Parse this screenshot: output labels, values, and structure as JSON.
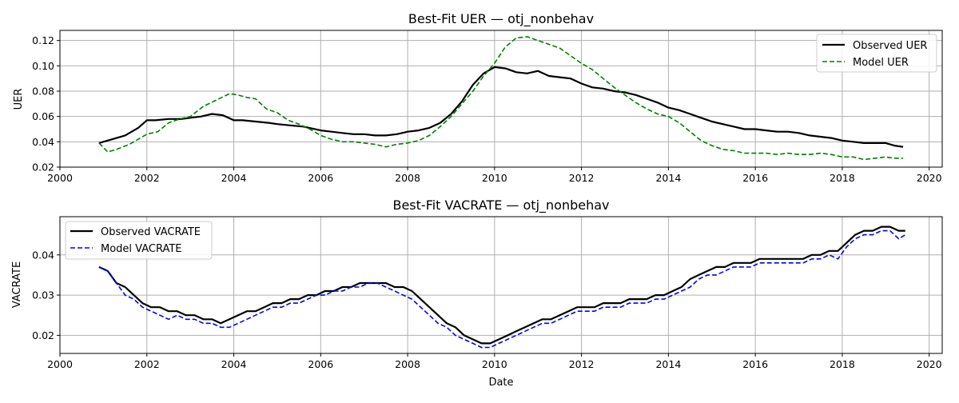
{
  "chart_data": [
    {
      "type": "line",
      "title": "Best-Fit UER — otj_nonbehav",
      "xlabel": "",
      "ylabel": "UER",
      "xlim": [
        2000,
        2020.3
      ],
      "ylim": [
        0.02,
        0.128
      ],
      "xticks": [
        2000,
        2002,
        2004,
        2006,
        2008,
        2010,
        2012,
        2014,
        2016,
        2018,
        2020
      ],
      "yticks": [
        0.02,
        0.04,
        0.06,
        0.08,
        0.1,
        0.12
      ],
      "ytick_labels": [
        "0.02",
        "0.04",
        "0.06",
        "0.08",
        "0.10",
        "0.12"
      ],
      "grid": true,
      "legend_placement": "upper-right",
      "series": [
        {
          "name": "Observed UER",
          "color": "#000000",
          "style": "solid",
          "x": [
            2000.9,
            2001.2,
            2001.5,
            2001.8,
            2002.0,
            2002.2,
            2002.5,
            2002.8,
            2003.0,
            2003.25,
            2003.5,
            2003.75,
            2004.0,
            2004.2,
            2004.5,
            2004.8,
            2005.0,
            2005.3,
            2005.6,
            2006.0,
            2006.25,
            2006.5,
            2006.75,
            2007.0,
            2007.25,
            2007.5,
            2007.75,
            2008.0,
            2008.25,
            2008.5,
            2008.75,
            2009.0,
            2009.25,
            2009.5,
            2009.75,
            2010.0,
            2010.25,
            2010.5,
            2010.75,
            2011.0,
            2011.25,
            2011.5,
            2011.75,
            2012.0,
            2012.25,
            2012.5,
            2012.75,
            2013.0,
            2013.25,
            2013.5,
            2013.75,
            2014.0,
            2014.25,
            2014.5,
            2014.75,
            2015.0,
            2015.25,
            2015.5,
            2015.75,
            2016.0,
            2016.25,
            2016.5,
            2016.75,
            2017.0,
            2017.25,
            2017.5,
            2017.75,
            2018.0,
            2018.25,
            2018.5,
            2018.75,
            2019.0,
            2019.2,
            2019.4
          ],
          "y": [
            0.039,
            0.042,
            0.045,
            0.051,
            0.057,
            0.057,
            0.058,
            0.058,
            0.059,
            0.06,
            0.062,
            0.061,
            0.057,
            0.057,
            0.056,
            0.055,
            0.054,
            0.053,
            0.052,
            0.049,
            0.048,
            0.047,
            0.046,
            0.046,
            0.045,
            0.045,
            0.046,
            0.048,
            0.049,
            0.051,
            0.055,
            0.062,
            0.072,
            0.085,
            0.094,
            0.099,
            0.098,
            0.095,
            0.094,
            0.096,
            0.092,
            0.091,
            0.09,
            0.086,
            0.083,
            0.082,
            0.08,
            0.079,
            0.077,
            0.074,
            0.071,
            0.067,
            0.065,
            0.062,
            0.059,
            0.056,
            0.054,
            0.052,
            0.05,
            0.05,
            0.049,
            0.048,
            0.048,
            0.047,
            0.045,
            0.044,
            0.043,
            0.041,
            0.04,
            0.039,
            0.039,
            0.039,
            0.037,
            0.036
          ]
        },
        {
          "name": "Model UER",
          "color": "#008000",
          "style": "dashed",
          "x": [
            2000.9,
            2001.1,
            2001.3,
            2001.6,
            2002.0,
            2002.25,
            2002.5,
            2002.75,
            2003.0,
            2003.3,
            2003.6,
            2003.9,
            2004.1,
            2004.3,
            2004.5,
            2004.75,
            2005.0,
            2005.25,
            2005.5,
            2005.75,
            2006.0,
            2006.25,
            2006.5,
            2006.75,
            2007.0,
            2007.25,
            2007.5,
            2007.75,
            2008.0,
            2008.25,
            2008.5,
            2008.75,
            2009.0,
            2009.25,
            2009.5,
            2009.75,
            2010.0,
            2010.25,
            2010.5,
            2010.75,
            2011.0,
            2011.25,
            2011.5,
            2011.75,
            2012.0,
            2012.25,
            2012.5,
            2012.75,
            2013.0,
            2013.25,
            2013.5,
            2013.75,
            2014.0,
            2014.25,
            2014.5,
            2014.75,
            2015.0,
            2015.25,
            2015.5,
            2015.75,
            2016.0,
            2016.25,
            2016.5,
            2016.75,
            2017.0,
            2017.25,
            2017.5,
            2017.75,
            2018.0,
            2018.25,
            2018.5,
            2018.75,
            2019.0,
            2019.2,
            2019.4
          ],
          "y": [
            0.039,
            0.032,
            0.034,
            0.038,
            0.046,
            0.048,
            0.055,
            0.058,
            0.06,
            0.068,
            0.073,
            0.078,
            0.077,
            0.075,
            0.074,
            0.066,
            0.063,
            0.057,
            0.054,
            0.05,
            0.045,
            0.042,
            0.04,
            0.04,
            0.039,
            0.038,
            0.036,
            0.038,
            0.039,
            0.041,
            0.045,
            0.052,
            0.06,
            0.07,
            0.08,
            0.092,
            0.102,
            0.115,
            0.122,
            0.123,
            0.12,
            0.117,
            0.114,
            0.108,
            0.102,
            0.097,
            0.09,
            0.083,
            0.077,
            0.071,
            0.066,
            0.062,
            0.06,
            0.055,
            0.048,
            0.041,
            0.037,
            0.034,
            0.033,
            0.031,
            0.031,
            0.031,
            0.03,
            0.031,
            0.03,
            0.03,
            0.031,
            0.03,
            0.028,
            0.028,
            0.026,
            0.027,
            0.028,
            0.027,
            0.027
          ]
        }
      ]
    },
    {
      "type": "line",
      "title": "Best-Fit VACRATE — otj_nonbehav",
      "xlabel": "Date",
      "ylabel": "VACRATE",
      "xlim": [
        2000,
        2020.3
      ],
      "ylim": [
        0.0155,
        0.0495
      ],
      "xticks": [
        2000,
        2002,
        2004,
        2006,
        2008,
        2010,
        2012,
        2014,
        2016,
        2018,
        2020
      ],
      "yticks": [
        0.02,
        0.03,
        0.04
      ],
      "ytick_labels": [
        "0.02",
        "0.03",
        "0.04"
      ],
      "grid": true,
      "legend_placement": "upper-left",
      "series": [
        {
          "name": "Observed VACRATE",
          "color": "#000000",
          "style": "solid",
          "x": [
            2000.9,
            2001.1,
            2001.3,
            2001.5,
            2001.7,
            2001.9,
            2002.1,
            2002.3,
            2002.5,
            2002.7,
            2002.9,
            2003.1,
            2003.3,
            2003.5,
            2003.7,
            2003.9,
            2004.1,
            2004.3,
            2004.5,
            2004.7,
            2004.9,
            2005.1,
            2005.3,
            2005.5,
            2005.7,
            2005.9,
            2006.1,
            2006.3,
            2006.5,
            2006.7,
            2006.9,
            2007.1,
            2007.3,
            2007.5,
            2007.7,
            2007.9,
            2008.1,
            2008.3,
            2008.5,
            2008.7,
            2008.9,
            2009.1,
            2009.3,
            2009.5,
            2009.7,
            2009.9,
            2010.1,
            2010.3,
            2010.5,
            2010.7,
            2010.9,
            2011.1,
            2011.3,
            2011.5,
            2011.7,
            2011.9,
            2012.1,
            2012.3,
            2012.5,
            2012.7,
            2012.9,
            2013.1,
            2013.3,
            2013.5,
            2013.7,
            2013.9,
            2014.1,
            2014.3,
            2014.5,
            2014.7,
            2014.9,
            2015.1,
            2015.3,
            2015.5,
            2015.7,
            2015.9,
            2016.1,
            2016.3,
            2016.5,
            2016.7,
            2016.9,
            2017.1,
            2017.3,
            2017.5,
            2017.7,
            2017.9,
            2018.1,
            2018.3,
            2018.5,
            2018.7,
            2018.9,
            2019.1,
            2019.3,
            2019.45
          ],
          "y": [
            0.037,
            0.036,
            0.033,
            0.032,
            0.03,
            0.028,
            0.027,
            0.027,
            0.026,
            0.026,
            0.025,
            0.025,
            0.024,
            0.024,
            0.023,
            0.024,
            0.025,
            0.026,
            0.026,
            0.027,
            0.028,
            0.028,
            0.029,
            0.029,
            0.03,
            0.03,
            0.031,
            0.031,
            0.032,
            0.032,
            0.033,
            0.033,
            0.033,
            0.033,
            0.032,
            0.032,
            0.031,
            0.029,
            0.027,
            0.025,
            0.023,
            0.022,
            0.02,
            0.019,
            0.018,
            0.018,
            0.019,
            0.02,
            0.021,
            0.022,
            0.023,
            0.024,
            0.024,
            0.025,
            0.026,
            0.027,
            0.027,
            0.027,
            0.028,
            0.028,
            0.028,
            0.029,
            0.029,
            0.029,
            0.03,
            0.03,
            0.031,
            0.032,
            0.034,
            0.035,
            0.036,
            0.037,
            0.037,
            0.038,
            0.038,
            0.038,
            0.039,
            0.039,
            0.039,
            0.039,
            0.039,
            0.039,
            0.04,
            0.04,
            0.041,
            0.041,
            0.043,
            0.045,
            0.046,
            0.046,
            0.047,
            0.047,
            0.046,
            0.046
          ]
        },
        {
          "name": "Model VACRATE",
          "color": "#0000ff",
          "style": "dashed",
          "x": [
            2000.9,
            2001.1,
            2001.3,
            2001.5,
            2001.7,
            2001.9,
            2002.1,
            2002.3,
            2002.5,
            2002.7,
            2002.9,
            2003.1,
            2003.3,
            2003.5,
            2003.7,
            2003.9,
            2004.1,
            2004.3,
            2004.5,
            2004.7,
            2004.9,
            2005.1,
            2005.3,
            2005.5,
            2005.7,
            2005.9,
            2006.1,
            2006.3,
            2006.5,
            2006.7,
            2006.9,
            2007.1,
            2007.3,
            2007.5,
            2007.7,
            2007.9,
            2008.1,
            2008.3,
            2008.5,
            2008.7,
            2008.9,
            2009.1,
            2009.3,
            2009.5,
            2009.7,
            2009.9,
            2010.1,
            2010.3,
            2010.5,
            2010.7,
            2010.9,
            2011.1,
            2011.3,
            2011.5,
            2011.7,
            2011.9,
            2012.1,
            2012.3,
            2012.5,
            2012.7,
            2012.9,
            2013.1,
            2013.3,
            2013.5,
            2013.7,
            2013.9,
            2014.1,
            2014.3,
            2014.5,
            2014.7,
            2014.9,
            2015.1,
            2015.3,
            2015.5,
            2015.7,
            2015.9,
            2016.1,
            2016.3,
            2016.5,
            2016.7,
            2016.9,
            2017.1,
            2017.3,
            2017.5,
            2017.7,
            2017.9,
            2018.1,
            2018.3,
            2018.5,
            2018.7,
            2018.9,
            2019.1,
            2019.3,
            2019.45
          ],
          "y": [
            0.037,
            0.036,
            0.033,
            0.03,
            0.029,
            0.027,
            0.026,
            0.025,
            0.024,
            0.025,
            0.024,
            0.024,
            0.023,
            0.023,
            0.022,
            0.022,
            0.023,
            0.024,
            0.025,
            0.026,
            0.027,
            0.027,
            0.028,
            0.028,
            0.029,
            0.03,
            0.03,
            0.031,
            0.031,
            0.032,
            0.032,
            0.033,
            0.033,
            0.032,
            0.031,
            0.03,
            0.029,
            0.027,
            0.025,
            0.023,
            0.022,
            0.02,
            0.019,
            0.018,
            0.017,
            0.017,
            0.018,
            0.019,
            0.02,
            0.021,
            0.022,
            0.023,
            0.023,
            0.024,
            0.025,
            0.026,
            0.026,
            0.026,
            0.027,
            0.027,
            0.027,
            0.028,
            0.028,
            0.028,
            0.029,
            0.029,
            0.03,
            0.031,
            0.032,
            0.034,
            0.035,
            0.035,
            0.036,
            0.037,
            0.037,
            0.037,
            0.038,
            0.038,
            0.038,
            0.038,
            0.038,
            0.038,
            0.039,
            0.039,
            0.04,
            0.039,
            0.042,
            0.044,
            0.045,
            0.045,
            0.046,
            0.046,
            0.044,
            0.045
          ]
        }
      ]
    }
  ]
}
